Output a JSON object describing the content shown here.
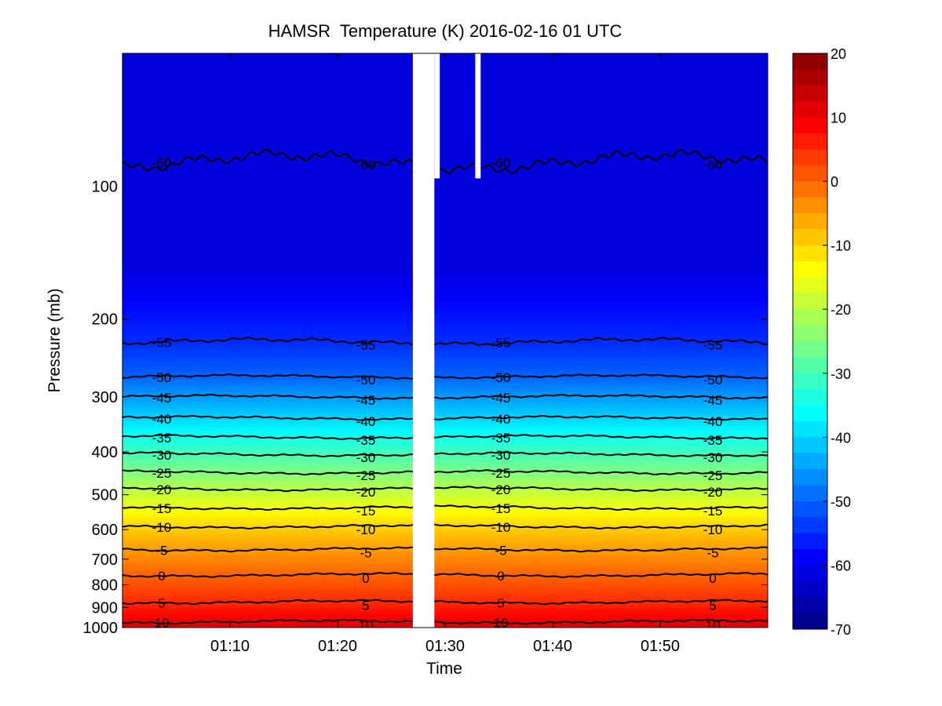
{
  "chart_data": {
    "type": "heatmap",
    "subtype": "contour-filled time-pressure cross-section",
    "title": "HAMSR  Temperature (K) 2016-02-16 01 UTC",
    "xlabel": "Time",
    "ylabel": "Pressure (mb)",
    "x_axis": {
      "range": [
        "01:00",
        "02:00"
      ],
      "ticks": [
        "01:10",
        "01:20",
        "01:30",
        "01:40",
        "01:50"
      ]
    },
    "y_axis": {
      "scale": "log",
      "reversed": true,
      "range": [
        50,
        1000
      ],
      "ticks": [
        "100",
        "200",
        "300",
        "400",
        "500",
        "600",
        "700",
        "800",
        "900",
        "1000"
      ]
    },
    "colorbar": {
      "colormap": "jet",
      "range": [
        -70,
        20
      ],
      "ticks": [
        "20",
        "10",
        "0",
        "-10",
        "-20",
        "-30",
        "-40",
        "-50",
        "-60",
        "-70"
      ]
    },
    "data_gaps": [
      {
        "start": "01:27",
        "end": "01:29",
        "p_top": 50,
        "p_bottom": 1000
      },
      {
        "start": "01:29",
        "end": "01:29.5",
        "p_top": 50,
        "p_bottom": 96
      },
      {
        "start": "01:32.8",
        "end": "01:33.3",
        "p_top": 50,
        "p_bottom": 96
      }
    ],
    "contours": [
      {
        "level": -60,
        "pressure": 88,
        "label": "-60"
      },
      {
        "level": -55,
        "pressure": 225,
        "label": "-55"
      },
      {
        "level": -50,
        "pressure": 270,
        "label": "-50"
      },
      {
        "level": -45,
        "pressure": 300,
        "label": "-45"
      },
      {
        "level": -40,
        "pressure": 335,
        "label": "-40"
      },
      {
        "level": -35,
        "pressure": 370,
        "label": "-35"
      },
      {
        "level": -30,
        "pressure": 405,
        "label": "-30"
      },
      {
        "level": -25,
        "pressure": 445,
        "label": "-25"
      },
      {
        "level": -20,
        "pressure": 485,
        "label": "-20"
      },
      {
        "level": -15,
        "pressure": 535,
        "label": "-15"
      },
      {
        "level": -10,
        "pressure": 590,
        "label": "-10"
      },
      {
        "level": -5,
        "pressure": 665,
        "label": "-5"
      },
      {
        "level": 0,
        "pressure": 760,
        "label": "0"
      },
      {
        "level": 5,
        "pressure": 875,
        "label": "5"
      },
      {
        "level": 10,
        "pressure": 970,
        "label": "10"
      }
    ],
    "temperature_profile": [
      {
        "pressure": 50,
        "temp": -62
      },
      {
        "pressure": 150,
        "temp": -62
      },
      {
        "pressure": 225,
        "temp": -55
      },
      {
        "pressure": 270,
        "temp": -50
      },
      {
        "pressure": 300,
        "temp": -45
      },
      {
        "pressure": 335,
        "temp": -40
      },
      {
        "pressure": 370,
        "temp": -35
      },
      {
        "pressure": 405,
        "temp": -30
      },
      {
        "pressure": 445,
        "temp": -25
      },
      {
        "pressure": 485,
        "temp": -20
      },
      {
        "pressure": 535,
        "temp": -15
      },
      {
        "pressure": 590,
        "temp": -10
      },
      {
        "pressure": 665,
        "temp": -5
      },
      {
        "pressure": 760,
        "temp": 0
      },
      {
        "pressure": 875,
        "temp": 5
      },
      {
        "pressure": 970,
        "temp": 10
      },
      {
        "pressure": 1000,
        "temp": 12
      }
    ],
    "grid": false
  }
}
